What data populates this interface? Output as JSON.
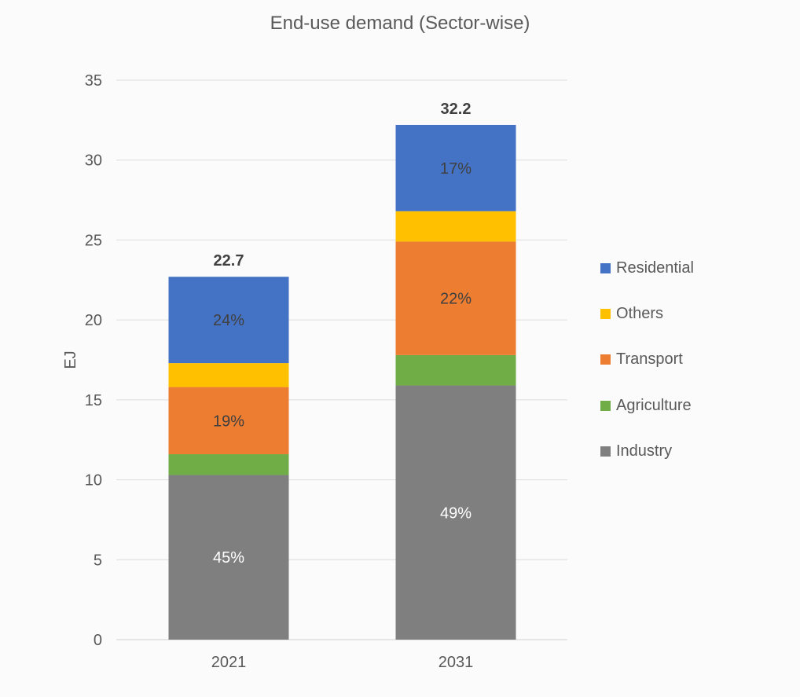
{
  "chart_data": {
    "type": "bar",
    "stacked": true,
    "title": "End-use demand (Sector-wise)",
    "xlabel": "",
    "ylabel": "EJ",
    "ylim": [
      0,
      35
    ],
    "yticks": [
      "0",
      "5",
      "10",
      "15",
      "20",
      "25",
      "30",
      "35"
    ],
    "grid": true,
    "legend_position": "right",
    "categories": [
      "2021",
      "2031"
    ],
    "totals": [
      "22.7",
      "32.2"
    ],
    "series": [
      {
        "name": "Industry",
        "color": "#7f7f7f",
        "label_color": "#ffffff",
        "values": [
          10.3,
          15.9
        ],
        "labels": [
          "45%",
          "49%"
        ]
      },
      {
        "name": "Agriculture",
        "color": "#70ad47",
        "label_color": "#404040",
        "values": [
          1.3,
          1.9
        ],
        "labels": [
          "",
          ""
        ]
      },
      {
        "name": "Transport",
        "color": "#ed7d31",
        "label_color": "#404040",
        "values": [
          4.2,
          7.1
        ],
        "labels": [
          "19%",
          "22%"
        ]
      },
      {
        "name": "Others",
        "color": "#ffc000",
        "label_color": "#404040",
        "values": [
          1.5,
          1.9
        ],
        "labels": [
          "",
          ""
        ]
      },
      {
        "name": "Residential",
        "color": "#4472c4",
        "label_color": "#404040",
        "values": [
          5.4,
          5.4
        ],
        "labels": [
          "24%",
          "17%"
        ]
      }
    ]
  }
}
